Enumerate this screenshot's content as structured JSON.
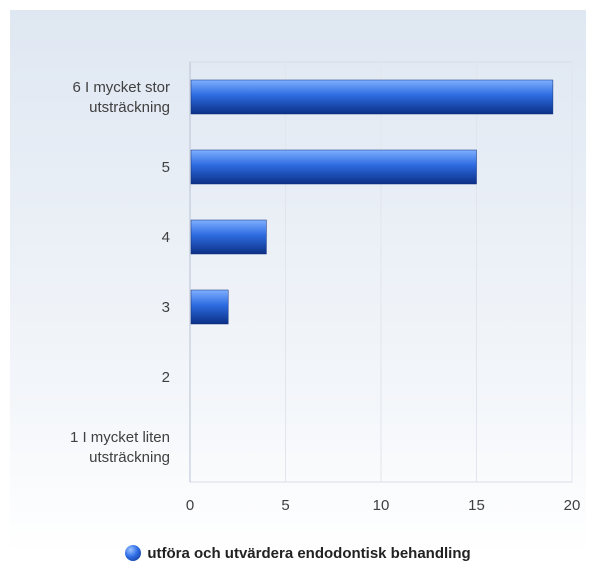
{
  "chart_data": {
    "type": "bar",
    "orientation": "horizontal",
    "categories": [
      "6 I mycket stor\nutsträckning",
      "5",
      "4",
      "3",
      "2",
      "1 I mycket liten\nutsträckning"
    ],
    "series": [
      {
        "name": "utföra och utvärdera endodontisk behandling",
        "values": [
          19,
          15,
          4,
          2,
          0,
          0
        ],
        "color": "#1f5ad6"
      }
    ],
    "xticks": [
      "0",
      "5",
      "10",
      "15",
      "20"
    ],
    "xlim": [
      0,
      20
    ],
    "grid": true,
    "legend_position": "bottom"
  }
}
